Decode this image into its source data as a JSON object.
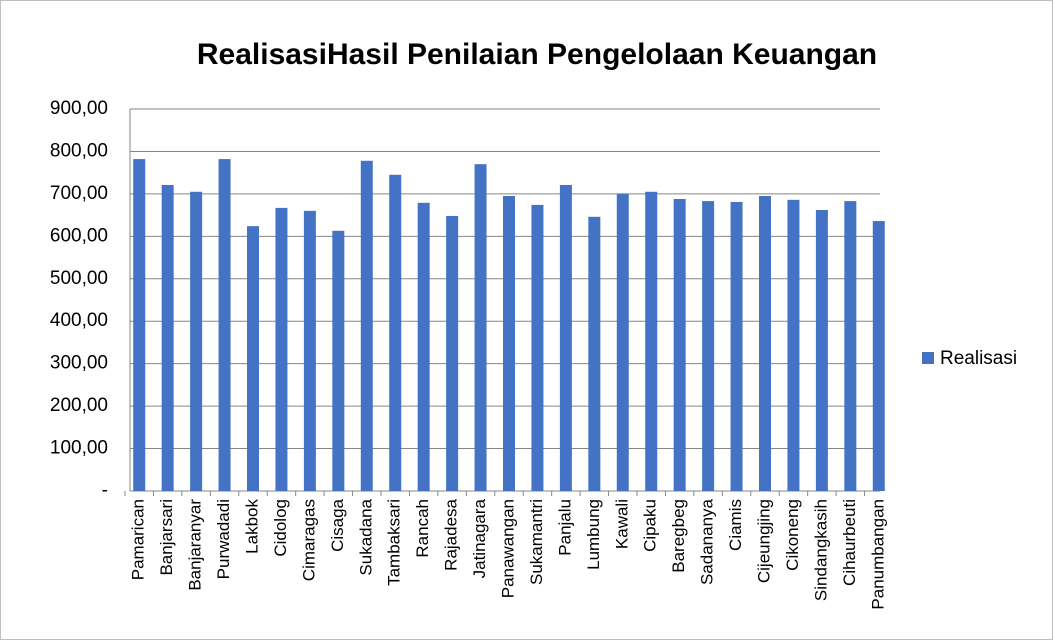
{
  "chart_data": {
    "type": "bar",
    "title": "RealisasiHasil Penilaian Pengelolaan Keuangan",
    "categories": [
      "Pamarican",
      "Banjarsari",
      "Banjaranyar",
      "Purwadadi",
      "Lakbok",
      "Cidolog",
      "Cimaragas",
      "Cisaga",
      "Sukadana",
      "Tambaksari",
      "Rancah",
      "Rajadesa",
      "Jatinagara",
      "Panawangan",
      "Sukamantri",
      "Panjalu",
      "Lumbung",
      "Kawali",
      "Cipaku",
      "Baregbeg",
      "Sadananya",
      "Ciamis",
      "Cijeungjing",
      "Cikoneng",
      "Sindangkasih",
      "Cihaurbeuti",
      "Panumbangan"
    ],
    "series": [
      {
        "name": "Realisasi",
        "color": "#4472c4",
        "values": [
          782,
          721,
          705,
          782,
          624,
          667,
          660,
          613,
          778,
          745,
          679,
          648,
          770,
          695,
          674,
          721,
          646,
          700,
          705,
          688,
          683,
          681,
          695,
          686,
          662,
          683,
          636
        ]
      }
    ],
    "ylim": [
      0,
      900
    ],
    "yticks": [
      {
        "value": 0,
        "label": "-"
      },
      {
        "value": 100,
        "label": "100,00"
      },
      {
        "value": 200,
        "label": "200,00"
      },
      {
        "value": 300,
        "label": "300,00"
      },
      {
        "value": 400,
        "label": "400,00"
      },
      {
        "value": 500,
        "label": "500,00"
      },
      {
        "value": 600,
        "label": "600,00"
      },
      {
        "value": 700,
        "label": "700,00"
      },
      {
        "value": 800,
        "label": "800,00"
      },
      {
        "value": 900,
        "label": "900,00"
      }
    ],
    "grid": true,
    "legend": "right"
  }
}
